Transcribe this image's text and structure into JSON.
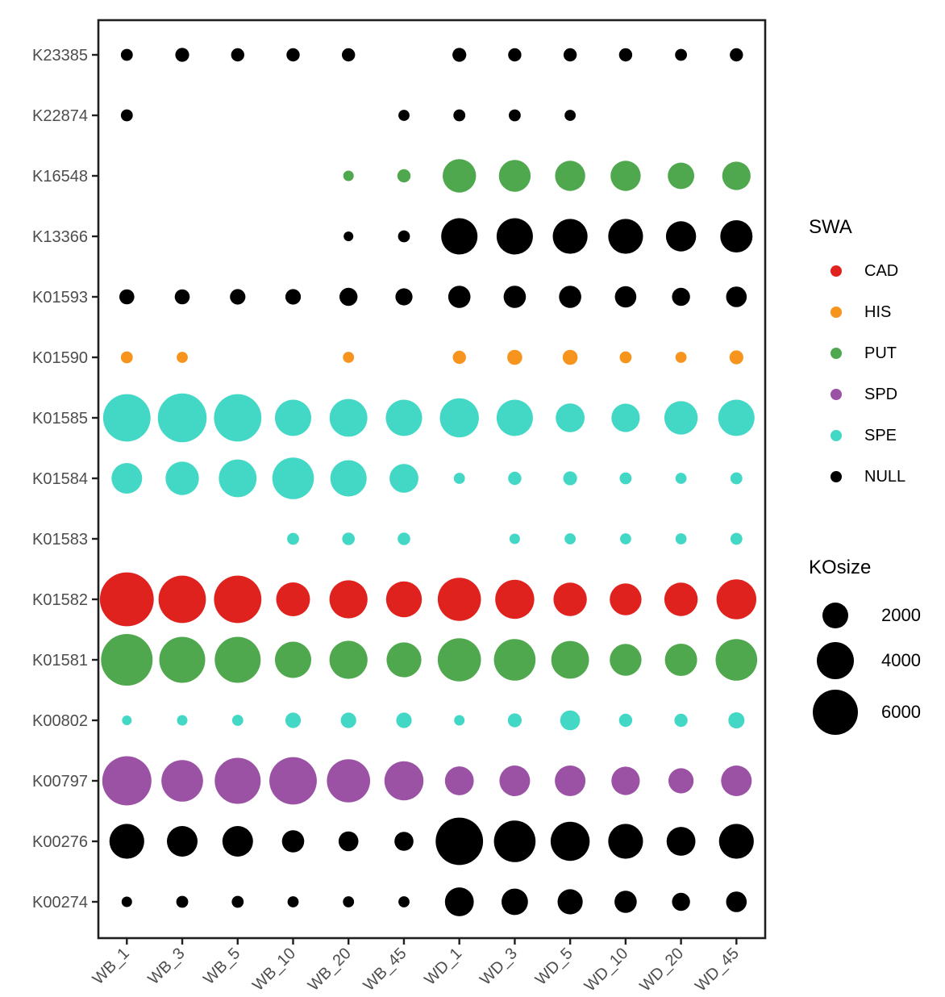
{
  "chart_data": {
    "type": "bubble",
    "title": "",
    "xlabel": "",
    "ylabel": "",
    "x_categories": [
      "WB_1",
      "WB_3",
      "WB_5",
      "WB_10",
      "WB_20",
      "WB_45",
      "WD_1",
      "WD_3",
      "WD_5",
      "WD_10",
      "WD_20",
      "WD_45"
    ],
    "y_categories": [
      "K23385",
      "K22874",
      "K16548",
      "K13366",
      "K01593",
      "K01590",
      "K01585",
      "K01584",
      "K01583",
      "K01582",
      "K01581",
      "K00802",
      "K00797",
      "K00276",
      "K00274"
    ],
    "color_legend": {
      "title": "SWA",
      "entries": [
        {
          "label": "CAD",
          "color": "#E0221E"
        },
        {
          "label": "HIS",
          "color": "#F7941E"
        },
        {
          "label": "PUT",
          "color": "#4FA84E"
        },
        {
          "label": "SPD",
          "color": "#9B52A5"
        },
        {
          "label": "SPE",
          "color": "#43D8C6"
        },
        {
          "label": "NULL",
          "color": "#000000"
        }
      ]
    },
    "size_legend": {
      "title": "KOsize",
      "values": [
        "2000",
        "4000",
        "6000"
      ]
    },
    "rows": [
      {
        "ko": "K23385",
        "swa": "NULL",
        "values": [
          450,
          600,
          550,
          550,
          550,
          null,
          600,
          550,
          550,
          550,
          450,
          550
        ]
      },
      {
        "ko": "K22874",
        "swa": "NULL",
        "values": [
          450,
          null,
          null,
          null,
          null,
          400,
          450,
          450,
          400,
          null,
          null,
          null
        ]
      },
      {
        "ko": "K16548",
        "swa": "PUT",
        "values": [
          null,
          null,
          null,
          null,
          350,
          550,
          3300,
          3000,
          2700,
          2700,
          2100,
          2400
        ]
      },
      {
        "ko": "K13366",
        "swa": "NULL",
        "values": [
          null,
          null,
          null,
          null,
          300,
          450,
          3900,
          3900,
          3600,
          3600,
          2700,
          3100
        ]
      },
      {
        "ko": "K01593",
        "swa": "NULL",
        "values": [
          700,
          700,
          750,
          750,
          1000,
          900,
          1500,
          1500,
          1500,
          1400,
          1000,
          1300
        ]
      },
      {
        "ko": "K01590",
        "swa": "HIS",
        "values": [
          450,
          400,
          null,
          null,
          400,
          null,
          550,
          700,
          700,
          450,
          400,
          600
        ]
      },
      {
        "ko": "K01585",
        "swa": "SPE",
        "values": [
          6600,
          7000,
          6600,
          3900,
          4200,
          3900,
          4500,
          3900,
          2500,
          2400,
          3300,
          3900
        ]
      },
      {
        "ko": "K01584",
        "swa": "SPE",
        "values": [
          2800,
          3300,
          4200,
          5100,
          3900,
          2500,
          400,
          550,
          600,
          450,
          400,
          450
        ]
      },
      {
        "ko": "K01583",
        "swa": "SPE",
        "values": [
          null,
          null,
          null,
          450,
          500,
          500,
          null,
          350,
          400,
          400,
          400,
          450
        ]
      },
      {
        "ko": "K01582",
        "swa": "CAD",
        "values": [
          8500,
          6600,
          6600,
          3400,
          4300,
          3800,
          5500,
          4500,
          3300,
          3000,
          3300,
          4700
        ]
      },
      {
        "ko": "K01581",
        "swa": "PUT",
        "values": [
          7800,
          6200,
          6200,
          3900,
          4300,
          3600,
          5500,
          5100,
          4200,
          3000,
          3100,
          5100
        ]
      },
      {
        "ko": "K00802",
        "swa": "SPE",
        "values": [
          300,
          350,
          400,
          750,
          750,
          750,
          350,
          600,
          1200,
          550,
          550,
          800
        ]
      },
      {
        "ko": "K00797",
        "swa": "SPD",
        "values": [
          7100,
          5100,
          6200,
          6600,
          5500,
          4500,
          2500,
          2800,
          2800,
          2400,
          1900,
          2800
        ]
      },
      {
        "ko": "K00276",
        "swa": "NULL",
        "values": [
          3600,
          2800,
          2800,
          1500,
          1200,
          1100,
          6600,
          5100,
          4500,
          3600,
          2500,
          3600
        ]
      },
      {
        "ko": "K00274",
        "swa": "NULL",
        "values": [
          350,
          450,
          450,
          400,
          400,
          400,
          2500,
          2100,
          1900,
          1500,
          1000,
          1300
        ]
      }
    ],
    "size_scale_anchors": {
      "size_2000_radius_px": 16,
      "size_6000_radius_px": 28
    },
    "layout_hints": {
      "grid": false,
      "legend_position": "right",
      "x_tick_angle": 45
    }
  }
}
